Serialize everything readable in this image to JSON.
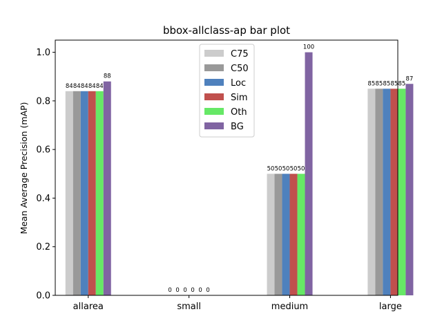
{
  "chart_data": {
    "type": "bar",
    "title": "bbox-allclass-ap bar plot",
    "xlabel": "",
    "ylabel": "Mean Average Precision (mAP)",
    "ylim": [
      0,
      1.05
    ],
    "yticks": [
      0.0,
      0.2,
      0.4,
      0.6,
      0.8,
      1.0
    ],
    "ytick_labels": [
      "0.0",
      "0.2",
      "0.4",
      "0.6",
      "0.8",
      "1.0"
    ],
    "categories": [
      "allarea",
      "small",
      "medium",
      "large"
    ],
    "grid": false,
    "legend_position": "top-center",
    "series": [
      {
        "name": "C75",
        "color": "#cccccc",
        "values": [
          0.84,
          0.0,
          0.5,
          0.85
        ],
        "labels": [
          "84",
          "0",
          "50",
          "85"
        ]
      },
      {
        "name": "C50",
        "color": "#999999",
        "values": [
          0.84,
          0.0,
          0.5,
          0.85
        ],
        "labels": [
          "84",
          "0",
          "50",
          "85"
        ]
      },
      {
        "name": "Loc",
        "color": "#4f81bd",
        "values": [
          0.84,
          0.0,
          0.5,
          0.85
        ],
        "labels": [
          "84",
          "0",
          "50",
          "85"
        ]
      },
      {
        "name": "Sim",
        "color": "#c0504d",
        "values": [
          0.84,
          0.0,
          0.5,
          0.85
        ],
        "labels": [
          "84",
          "0",
          "50",
          "85"
        ]
      },
      {
        "name": "Oth",
        "color": "#66e866",
        "values": [
          0.84,
          0.0,
          0.5,
          0.85
        ],
        "labels": [
          "84",
          "0",
          "50",
          "85"
        ]
      },
      {
        "name": "BG",
        "color": "#8064a2",
        "values": [
          0.88,
          0.0,
          1.0,
          0.87
        ],
        "labels": [
          "88",
          "0",
          "100",
          "87"
        ]
      }
    ]
  }
}
